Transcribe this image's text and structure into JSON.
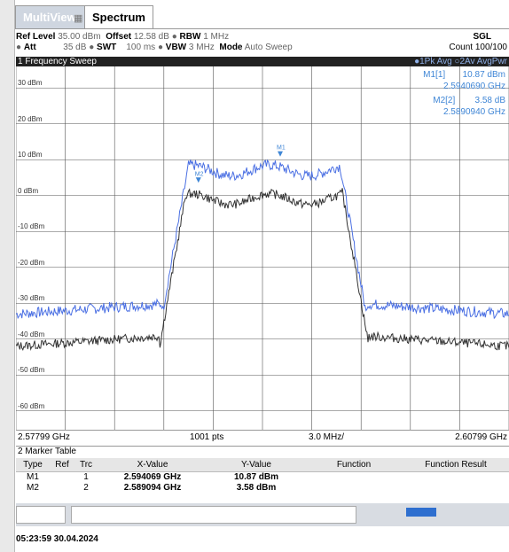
{
  "tabs": {
    "inactive": "MultiView",
    "active": "Spectrum"
  },
  "header": {
    "ref_level_label": "Ref Level",
    "ref_level_value": "35.00 dBm",
    "offset_label": "Offset",
    "offset_value": "12.58 dB",
    "rbw_label": "RBW",
    "rbw_value": "1 MHz",
    "att_label": "Att",
    "att_value": "35 dB",
    "swt_label": "SWT",
    "swt_value": "100 ms",
    "vbw_label": "VBW",
    "vbw_value": "3 MHz",
    "mode_label": "Mode",
    "mode_value": "Auto Sweep",
    "sgl": "SGL",
    "count": "Count 100/100"
  },
  "sweep_bar": {
    "title": "1 Frequency Sweep",
    "traces": "●1Pk Avg ○2Av AvgPwr"
  },
  "markers": {
    "m1_label": "M1[1]",
    "m1_level": "10.87 dBm",
    "m1_freq": "2.5940690 GHz",
    "m2_label": "M2[2]",
    "m2_level": "3.58 dB",
    "m2_freq": "2.5890940 GHz",
    "m1_plot_tag": "M1",
    "m2_plot_tag": "M2"
  },
  "y_axis_labels": [
    "30 dBm",
    "20 dBm",
    "10 dBm",
    "0 dBm",
    "-10 dBm",
    "-20 dBm",
    "-30 dBm",
    "-40 dBm",
    "-50 dBm",
    "-60 dBm"
  ],
  "x_bar": {
    "start": "2.57799 GHz",
    "points": "1001 pts",
    "span": "3.0 MHz/",
    "stop": "2.60799 GHz"
  },
  "marker_table": {
    "title": "2 Marker Table",
    "headers": [
      "Type",
      "Ref",
      "Trc",
      "X-Value",
      "Y-Value",
      "Function",
      "Function Result"
    ],
    "rows": [
      {
        "type": "M1",
        "ref": "",
        "trc": "1",
        "x": "2.594069 GHz",
        "y": "10.87 dBm"
      },
      {
        "type": "M2",
        "ref": "",
        "trc": "2",
        "x": "2.589094 GHz",
        "y": "3.58 dBm"
      }
    ]
  },
  "datetime": "05:23:59  30.04.2024",
  "colors": {
    "trace1": "#4a6fe3",
    "trace2": "#333333",
    "marker_text": "#3f86d6",
    "grid": "#555555"
  }
}
